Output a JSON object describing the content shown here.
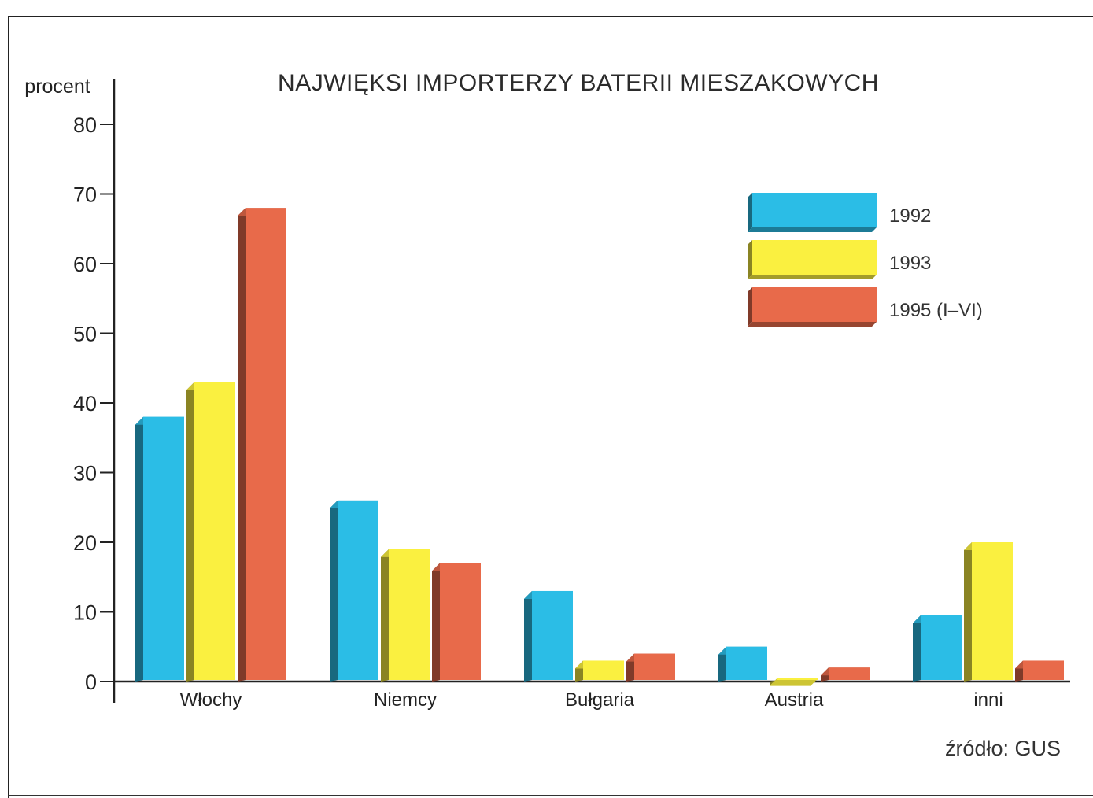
{
  "chart_data": {
    "type": "bar",
    "title": "NAJWIĘKSI IMPORTERZY BATERII MIESZAKOWYCH",
    "ylabel": "procent",
    "xlabel": "",
    "ylim": [
      0,
      80
    ],
    "yticks": [
      0,
      10,
      20,
      30,
      40,
      50,
      60,
      70,
      80
    ],
    "categories": [
      "Włochy",
      "Niemcy",
      "Bułgaria",
      "Austria",
      "inni"
    ],
    "series": [
      {
        "name": "1992",
        "color": "#2bbde6",
        "values": [
          38,
          26,
          13,
          5,
          9.5
        ]
      },
      {
        "name": "1993",
        "color": "#faf040",
        "values": [
          43,
          19,
          3,
          0.5,
          20
        ]
      },
      {
        "name": "1995 (I–VI)",
        "color": "#e86a4a",
        "values": [
          68,
          17,
          4,
          2,
          3
        ]
      }
    ],
    "legend": "top-right",
    "grid": false,
    "source": "źródło: GUS"
  }
}
